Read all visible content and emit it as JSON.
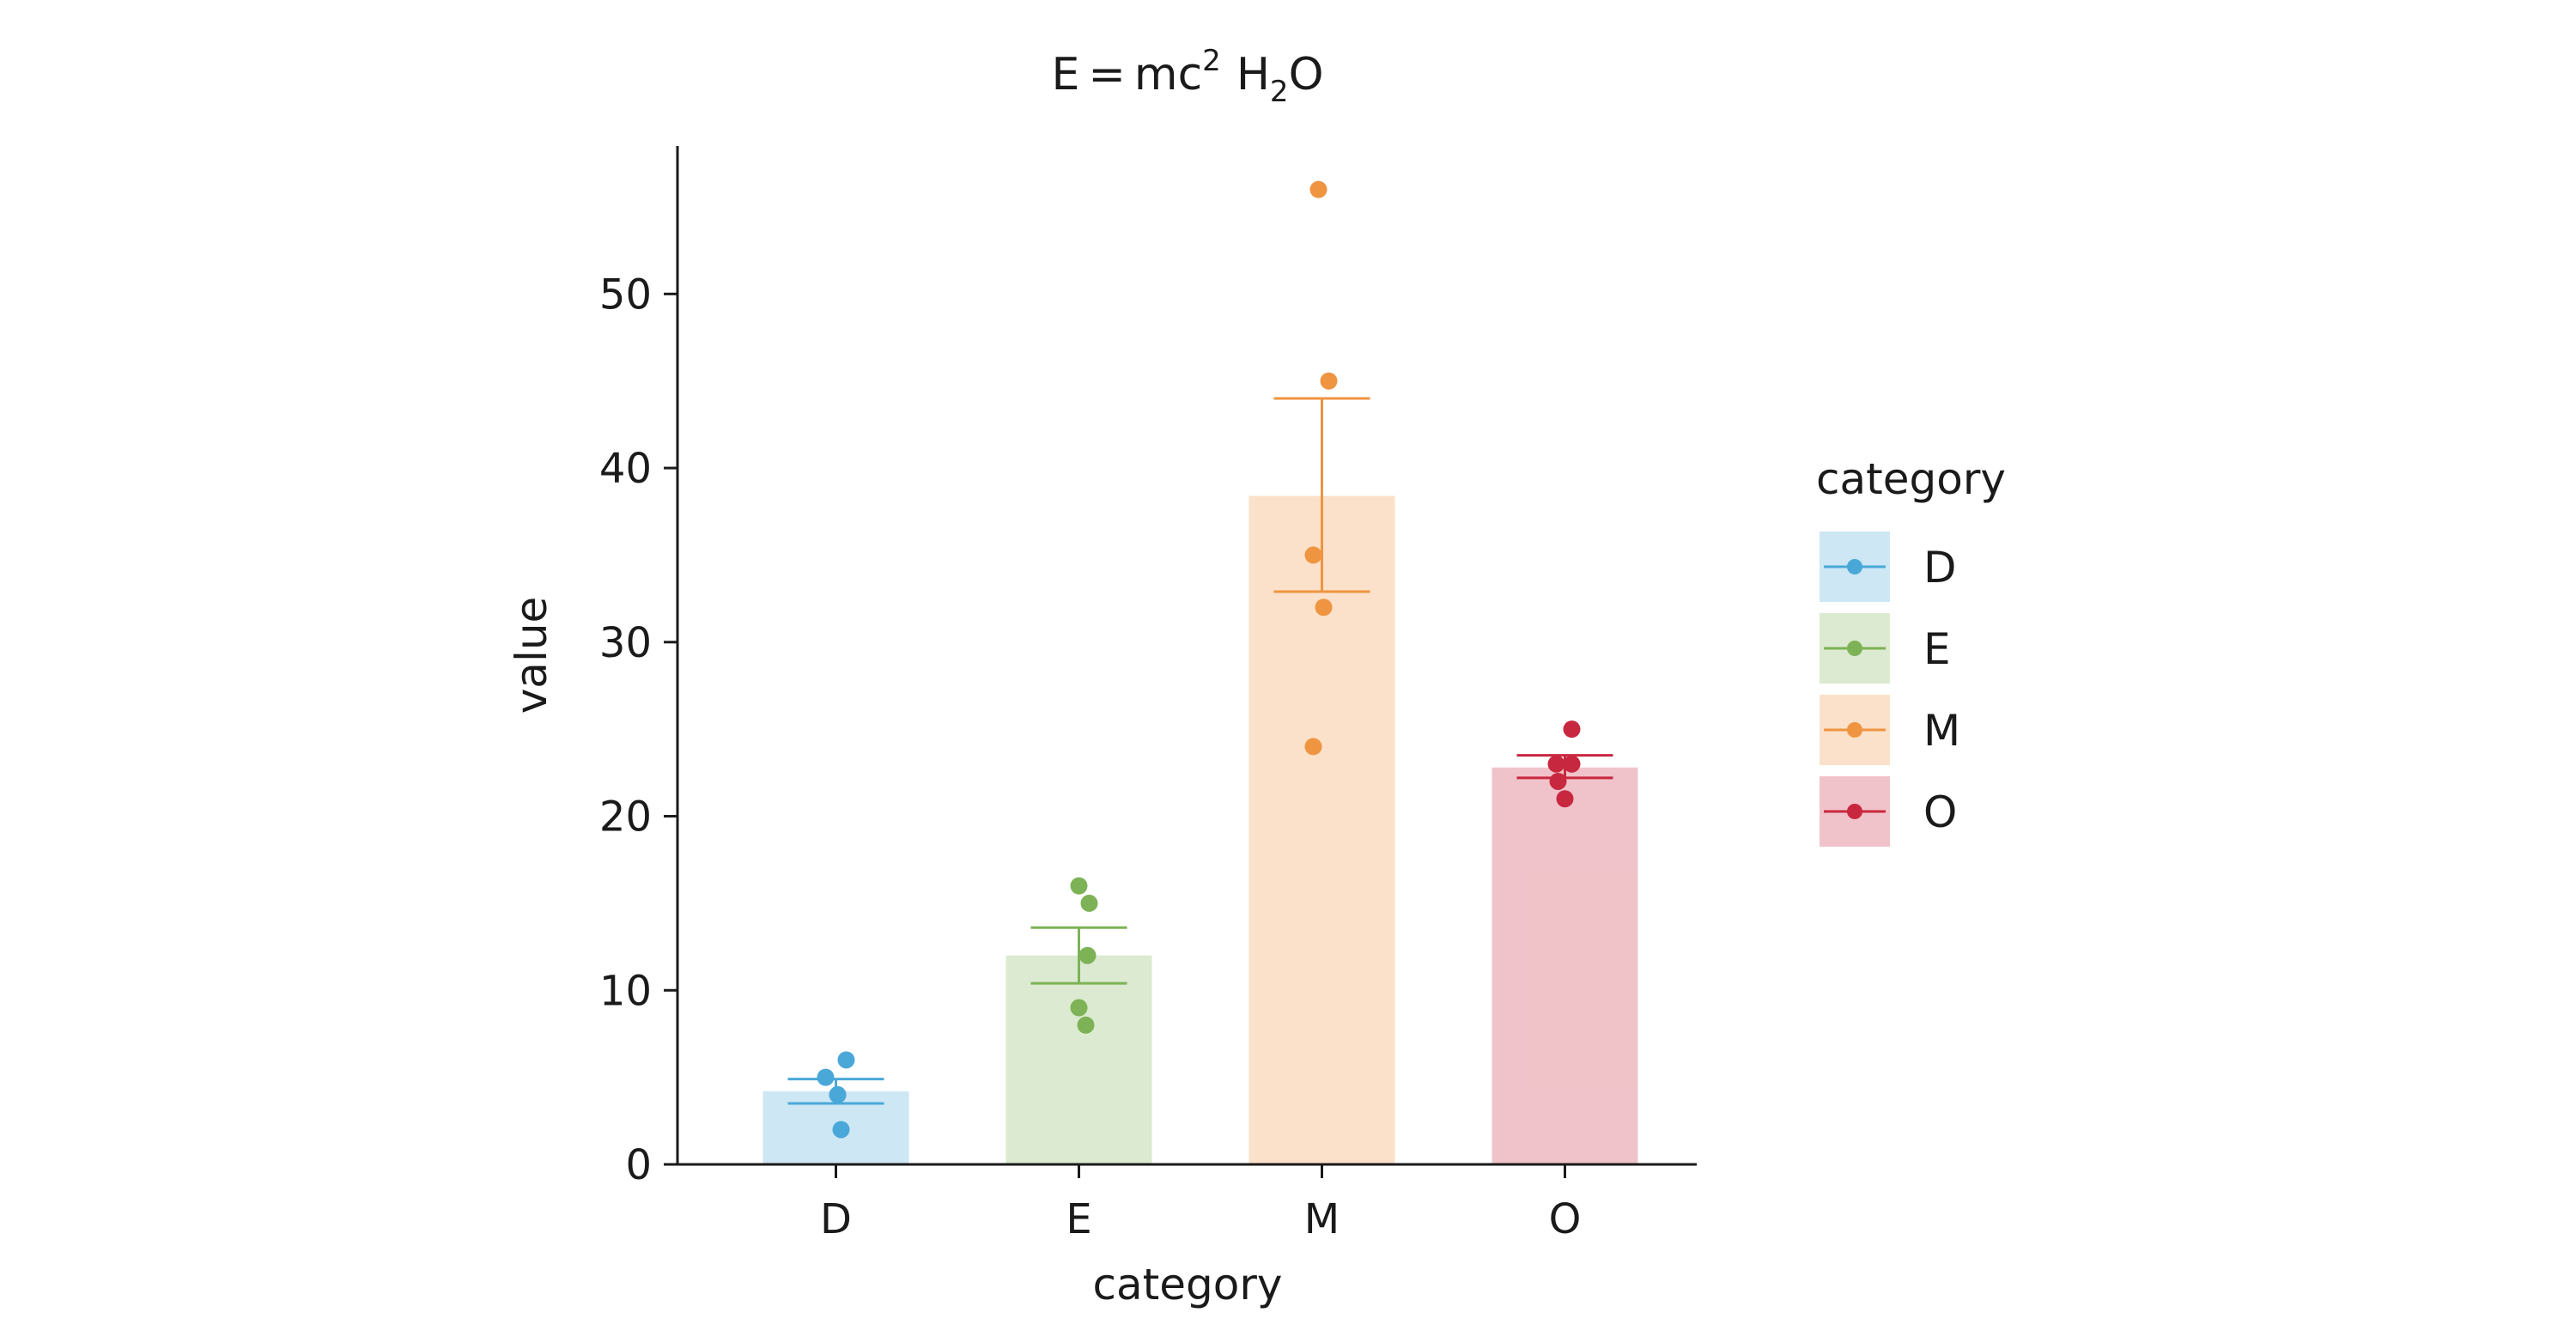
{
  "chart_data": {
    "type": "bar",
    "title": "E = mc² H₂O",
    "title_parts": {
      "e": "E",
      "eq": "=",
      "mc": "mc",
      "sup": "2",
      "h": "H",
      "sub": "2",
      "o": "O"
    },
    "xlabel": "category",
    "ylabel": "value",
    "categories": [
      "D",
      "E",
      "M",
      "O"
    ],
    "values": [
      4.2,
      12.0,
      38.4,
      22.8
    ],
    "error_bars": [
      {
        "low": 3.5,
        "high": 4.9
      },
      {
        "low": 10.4,
        "high": 13.6
      },
      {
        "low": 32.9,
        "high": 44.0
      },
      {
        "low": 22.2,
        "high": 23.5
      }
    ],
    "points": [
      [
        6,
        5,
        4,
        4,
        2
      ],
      [
        16,
        15,
        12,
        9,
        8
      ],
      [
        56,
        45,
        35,
        32,
        24
      ],
      [
        25,
        23,
        23,
        22,
        21
      ]
    ],
    "colors": [
      "#4aa8d8",
      "#7db356",
      "#ef9440",
      "#c8283f"
    ],
    "ylim": [
      0,
      58.5
    ],
    "yticks": [
      0,
      10,
      20,
      30,
      40,
      50
    ],
    "legend": {
      "title": "category",
      "entries": [
        "D",
        "E",
        "M",
        "O"
      ],
      "placement": "right"
    },
    "grid": false
  }
}
